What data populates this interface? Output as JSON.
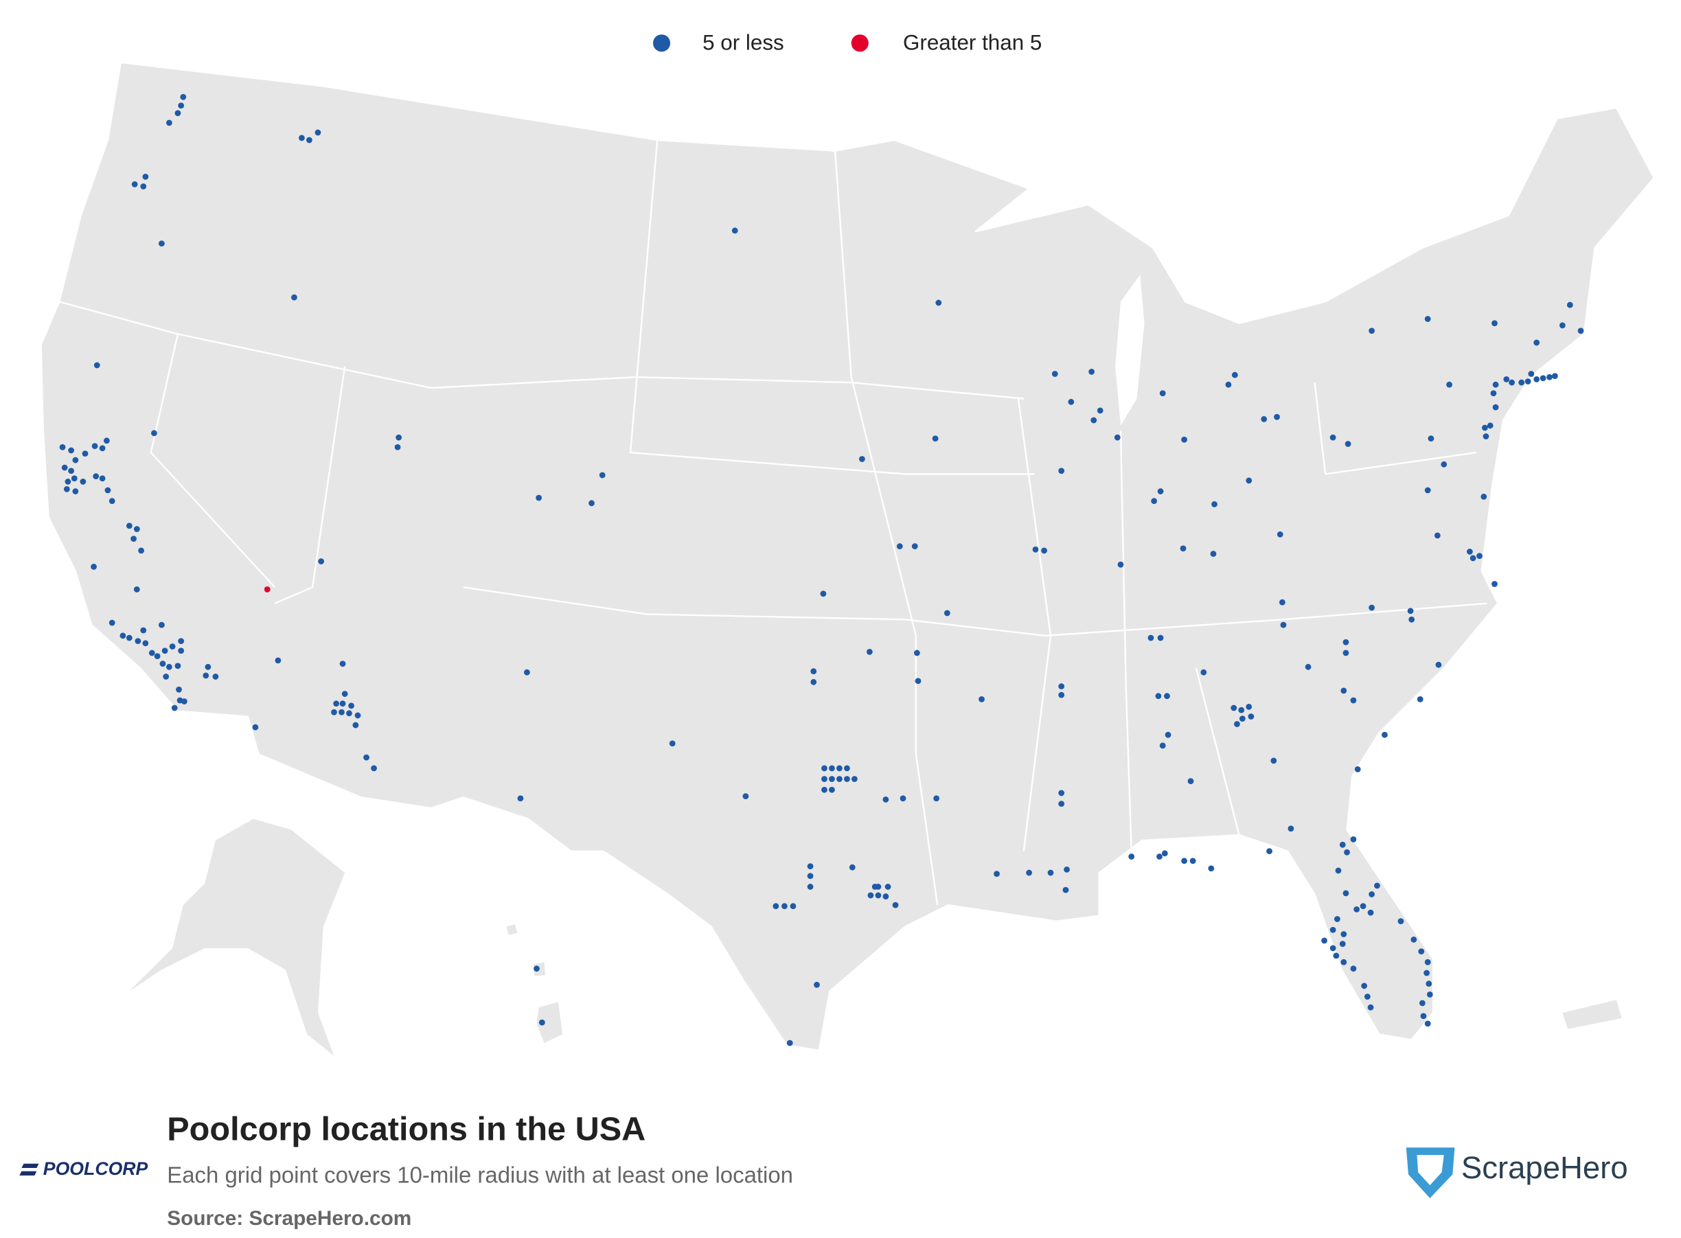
{
  "legend": {
    "items": [
      {
        "label": "5 or less",
        "color": "#1f5aa6"
      },
      {
        "label": "Greater than 5",
        "color": "#e4002b"
      }
    ]
  },
  "title": "Poolcorp locations in the USA",
  "subtitle": "Each grid point covers 10-mile radius with at least one location",
  "source": "Source: ScrapeHero.com",
  "brand": {
    "left_logo": "POOLCORP",
    "right_logo": "ScrapeHero"
  }
}
